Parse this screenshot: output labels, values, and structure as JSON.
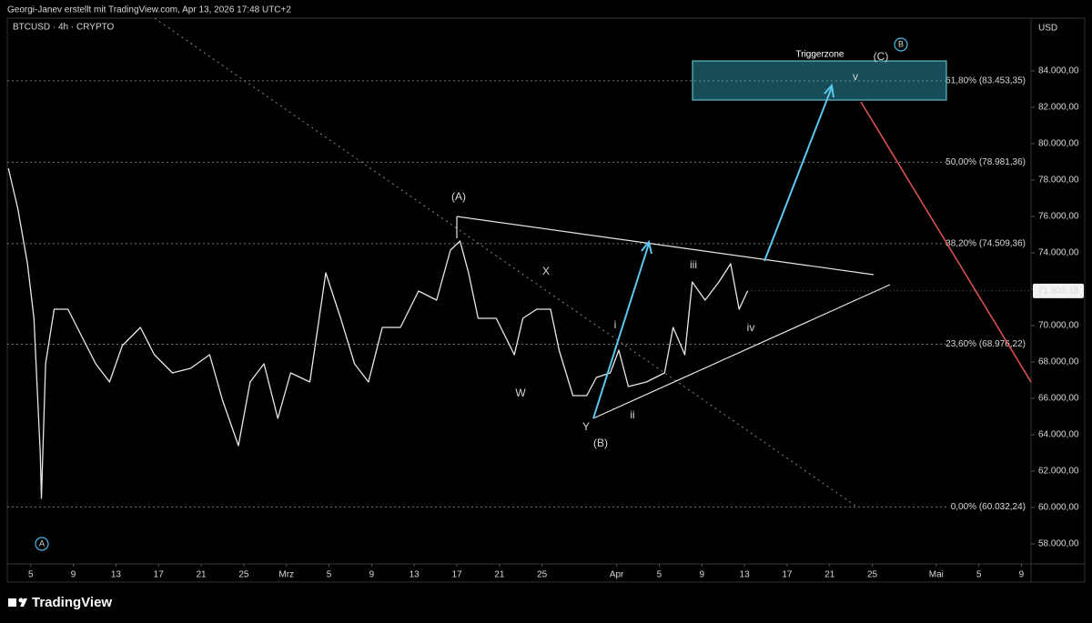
{
  "header": {
    "attribution": "Georgi-Janev erstellt mit TradingView.com, Apr 13, 2026 17:48 UTC+2"
  },
  "footer": {
    "brand": "TradingView"
  },
  "chart_data": {
    "type": "line",
    "title": "BTCUSD · 4h · CRYPTO",
    "y_axis_label": "USD",
    "color": "#e8e8e8",
    "x": [
      2.9,
      3.8,
      4.7,
      5.3,
      5.9,
      6.0,
      6.4,
      7.2,
      8.5,
      9.8,
      11.1,
      12.4,
      13.6,
      15.3,
      16.6,
      18.3,
      20.0,
      21.8,
      23.0,
      24.5,
      25.6,
      26.9,
      28.2,
      29.4,
      31.2,
      32.7,
      34.1,
      35.4,
      36.7,
      38.0,
      39.7,
      41.4,
      43.1,
      44.4,
      45.3,
      46.1,
      47.0,
      48.7,
      50.4,
      51.2,
      52.5,
      53.8,
      54.6,
      55.9,
      57.2,
      58.1,
      59.4,
      60.2,
      61.1,
      62.8,
      64.5,
      65.3,
      66.4,
      67.1,
      68.3,
      69.6,
      70.7,
      71.5,
      72.3
    ],
    "values": [
      78650,
      76400,
      73400,
      70400,
      62900,
      60500,
      67900,
      70900,
      70900,
      69400,
      67900,
      66900,
      68900,
      69900,
      68400,
      67400,
      67650,
      68400,
      65900,
      63400,
      66900,
      67900,
      64900,
      67400,
      66900,
      72900,
      70400,
      67900,
      66900,
      69900,
      69900,
      71900,
      71400,
      74150,
      74650,
      72900,
      70400,
      70400,
      68400,
      70400,
      70900,
      70900,
      68650,
      66150,
      66150,
      67150,
      67400,
      68650,
      66650,
      66900,
      67400,
      69900,
      68400,
      72400,
      71400,
      72400,
      73400,
      70900,
      71903.18
    ],
    "xlim": [
      2.8,
      98.9
    ],
    "xticks": [
      {
        "value": 5,
        "label": "5"
      },
      {
        "value": 9,
        "label": "9"
      },
      {
        "value": 13,
        "label": "13"
      },
      {
        "value": 17,
        "label": "17"
      },
      {
        "value": 21,
        "label": "21"
      },
      {
        "value": 25,
        "label": "25"
      },
      {
        "value": 29,
        "label": "Mrz"
      },
      {
        "value": 33,
        "label": "5"
      },
      {
        "value": 37,
        "label": "9"
      },
      {
        "value": 41,
        "label": "13"
      },
      {
        "value": 45,
        "label": "17"
      },
      {
        "value": 49,
        "label": "21"
      },
      {
        "value": 53,
        "label": "25"
      },
      {
        "value": 60,
        "label": "Apr"
      },
      {
        "value": 64,
        "label": "5"
      },
      {
        "value": 68,
        "label": "9"
      },
      {
        "value": 72,
        "label": "13"
      },
      {
        "value": 76,
        "label": "17"
      },
      {
        "value": 80,
        "label": "21"
      },
      {
        "value": 84,
        "label": "25"
      },
      {
        "value": 90,
        "label": "Mai"
      },
      {
        "value": 94,
        "label": "5"
      },
      {
        "value": 98,
        "label": "9"
      }
    ],
    "ylim": [
      56900,
      86900
    ],
    "yticks": [
      {
        "value": 58000,
        "label": "58.000,00"
      },
      {
        "value": 60000,
        "label": "60.000,00"
      },
      {
        "value": 62000,
        "label": "62.000,00"
      },
      {
        "value": 64000,
        "label": "64.000,00"
      },
      {
        "value": 66000,
        "label": "66.000,00"
      },
      {
        "value": 68000,
        "label": "68.000,00"
      },
      {
        "value": 70000,
        "label": "70.000,00"
      },
      {
        "value": 72000,
        "label": "72.000,00"
      },
      {
        "value": 74000,
        "label": "74.000,00"
      },
      {
        "value": 76000,
        "label": "76.000,00"
      },
      {
        "value": 78000,
        "label": "78.000,00"
      },
      {
        "value": 80000,
        "label": "80.000,00"
      },
      {
        "value": 82000,
        "label": "82.000,00"
      },
      {
        "value": 84000,
        "label": "84.000,00"
      }
    ],
    "last_value": {
      "value": 71903.18,
      "label": "71.903,18"
    },
    "reference_lines": [
      {
        "value": 83453.35,
        "label": "61,80% (83.453,35)",
        "color": "#f0c24a"
      },
      {
        "value": 78981.36,
        "label": "50,00% (78.981,36)",
        "color": "#cfcfcf"
      },
      {
        "value": 74509.36,
        "label": "38,20% (74.509,36)",
        "color": "#f0c24a"
      },
      {
        "value": 68976.22,
        "label": "23,60% (68.976,22)",
        "color": "#cfcfcf"
      },
      {
        "value": 60032.24,
        "label": "0,00% (60.032,24)",
        "color": "#cfcfcf"
      }
    ],
    "zone_label": "Triggerzone",
    "annotations": [
      {
        "text": "(A)",
        "color": "#f0c24a"
      },
      {
        "text": "X",
        "color": "#ffffff"
      },
      {
        "text": "W",
        "color": "#ffffff"
      },
      {
        "text": "Y",
        "color": "#ffffff"
      },
      {
        "text": "(B)",
        "color": "#f0c24a"
      },
      {
        "text": "i",
        "color": "#ffffff"
      },
      {
        "text": "ii",
        "color": "#ffffff"
      },
      {
        "text": "iii",
        "color": "#ffffff"
      },
      {
        "text": "iv",
        "color": "#ffffff"
      },
      {
        "text": "v",
        "color": "#ffffff"
      },
      {
        "text": "(C)",
        "color": "#f0c24a"
      },
      {
        "text": "A",
        "color": "#4fb8e8"
      },
      {
        "text": "B",
        "color": "#4fb8e8"
      }
    ]
  }
}
